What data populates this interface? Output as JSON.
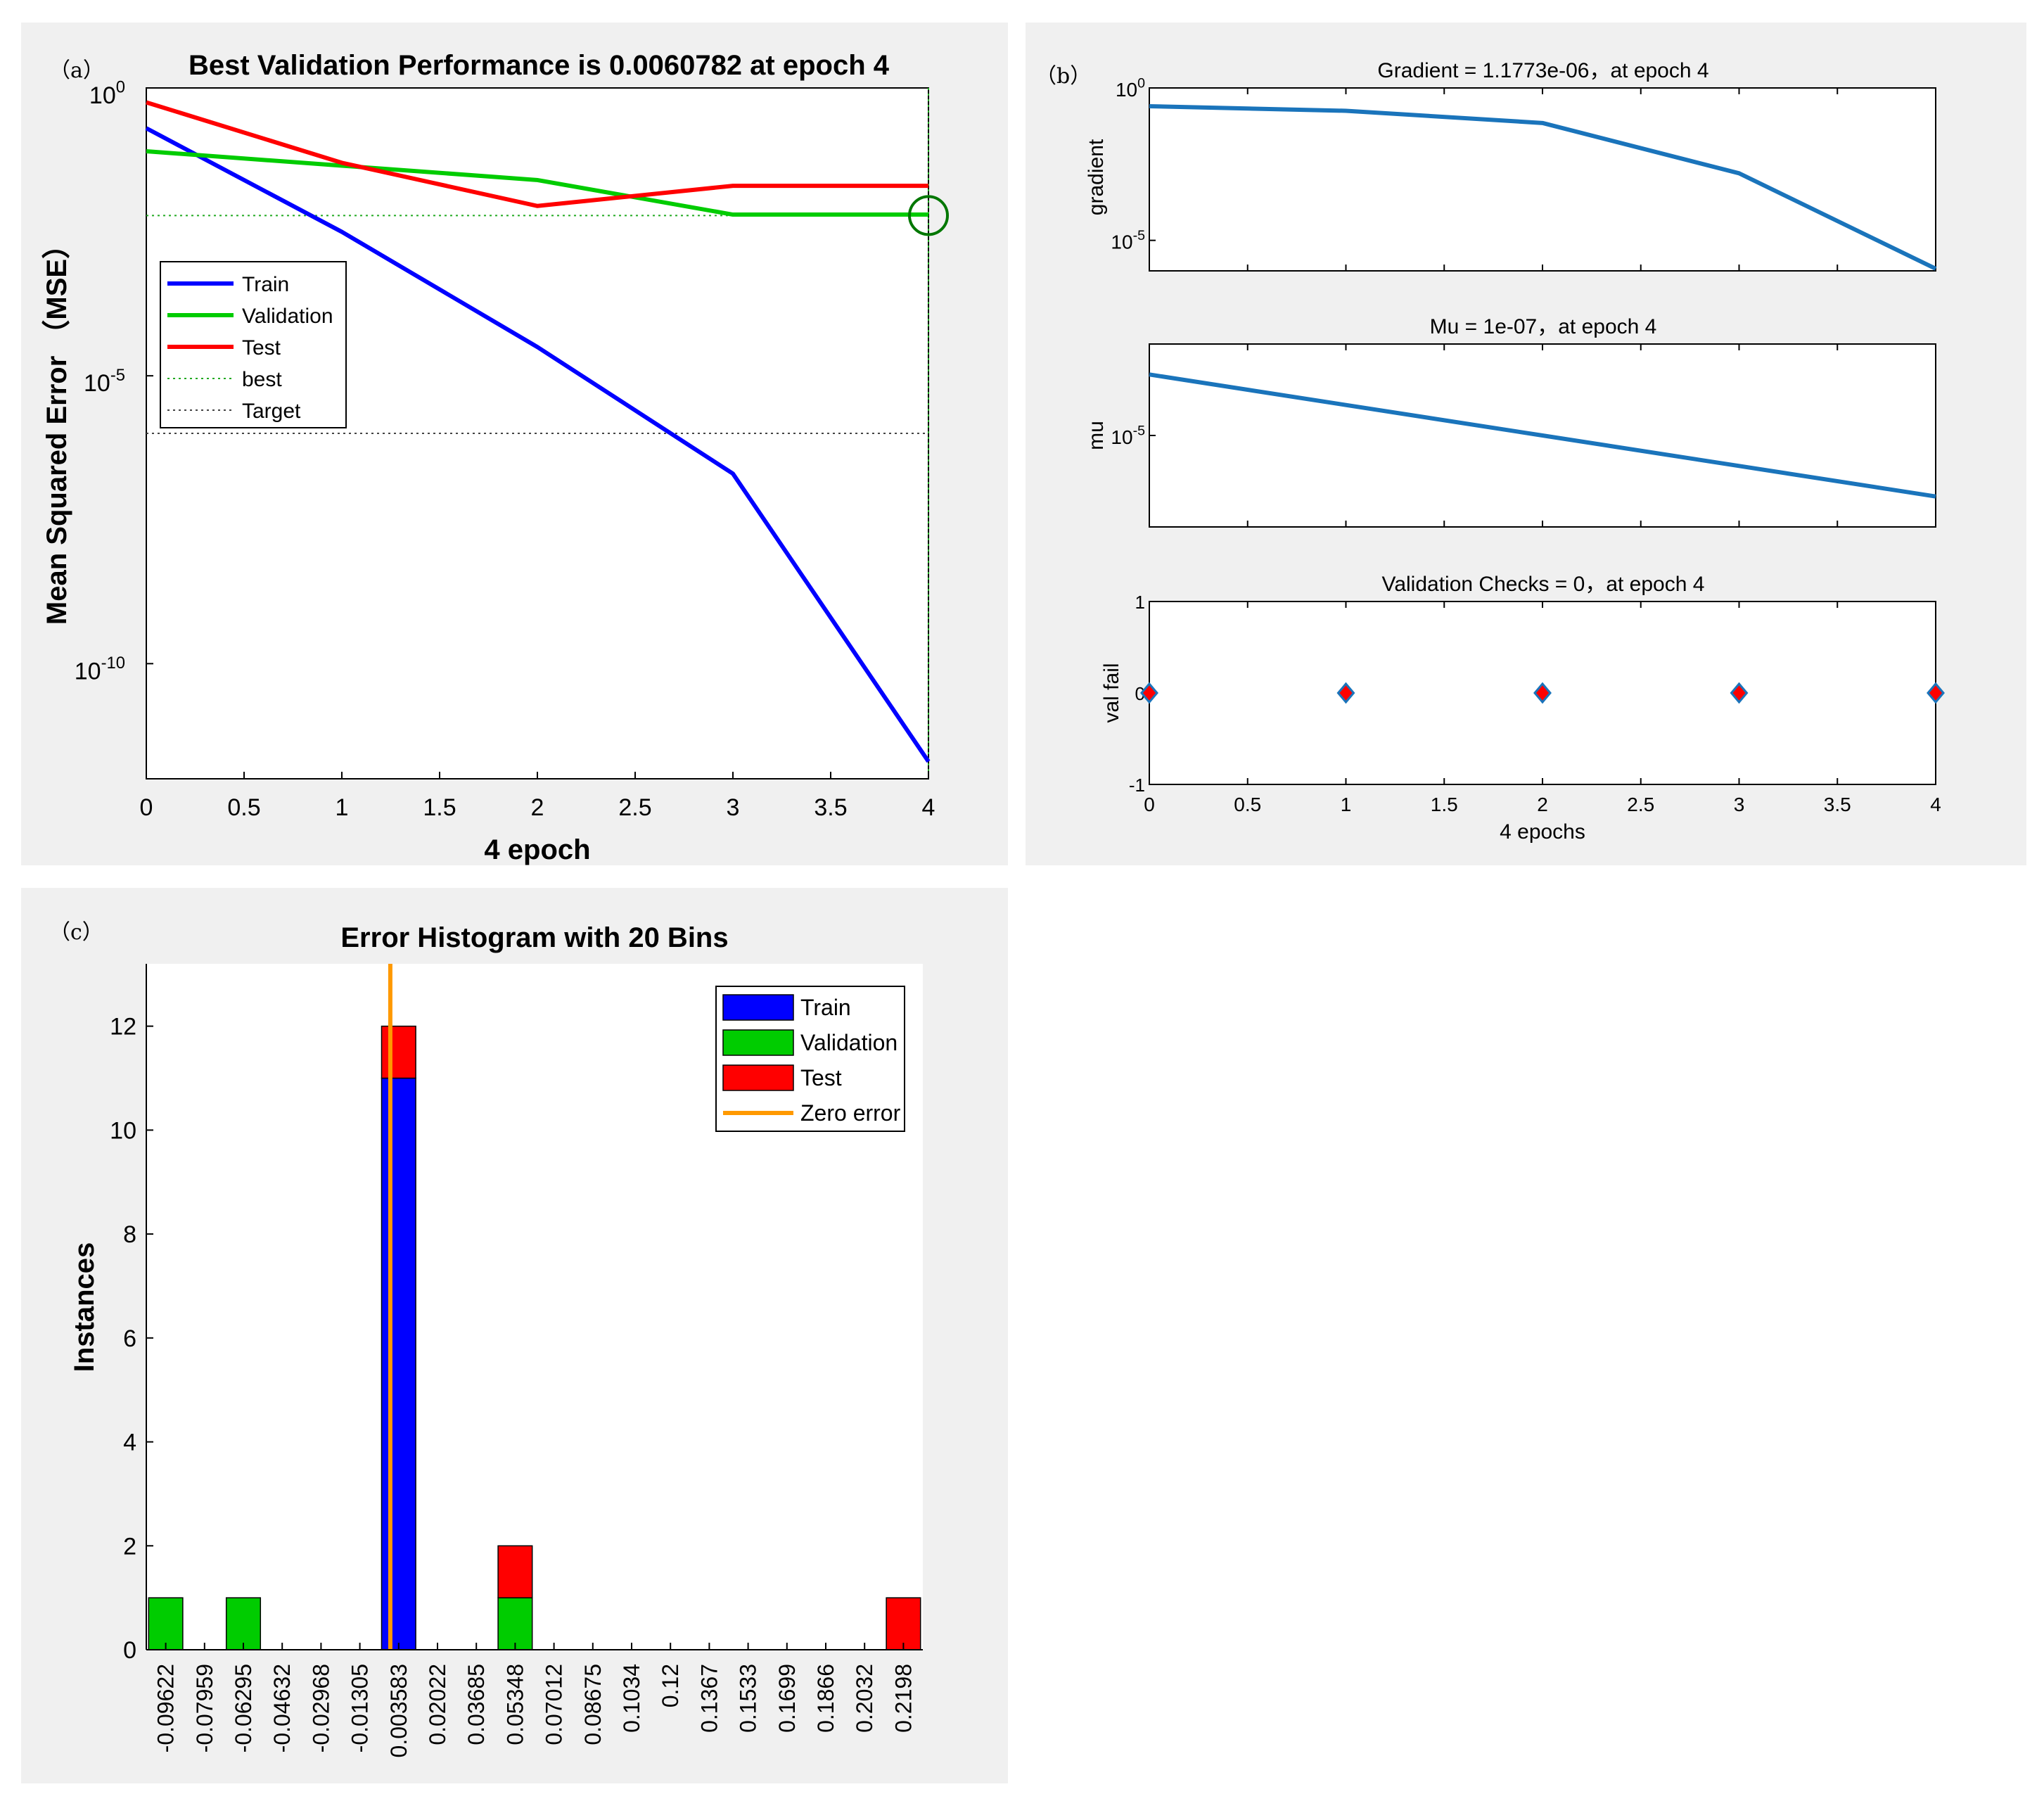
{
  "panels": {
    "a": {
      "tag": "（a）",
      "title": "Best Validation Performance is 0.0060782 at epoch 4"
    },
    "b": {
      "tag": "（b）"
    },
    "c": {
      "tag": "（c）",
      "title": "Error Histogram with 20 Bins"
    }
  },
  "chart_data": [
    {
      "id": "performance",
      "type": "line",
      "title": "Best Validation Performance is 0.0060782 at epoch 4",
      "xlabel": "4 epoch",
      "ylabel": "Mean Squared Error （MSE）",
      "yscale": "log",
      "xlim": [
        0,
        4
      ],
      "ylim_log10": [
        -12,
        0
      ],
      "xticks": [
        "0",
        "0.5",
        "1",
        "1.5",
        "2",
        "2.5",
        "3",
        "3.5",
        "4"
      ],
      "yticks": [
        {
          "label": "10",
          "exp": "0",
          "value_log10": 0
        },
        {
          "label": "10",
          "exp": "-5",
          "value_log10": -5
        },
        {
          "label": "10",
          "exp": "-10",
          "value_log10": -10
        }
      ],
      "x": [
        0,
        1,
        2,
        3,
        4
      ],
      "series": [
        {
          "name": "Train",
          "color": "#0000ff",
          "log10": [
            -0.7,
            -2.5,
            -4.5,
            -6.7,
            -11.7
          ]
        },
        {
          "name": "Validation",
          "color": "#00cc00",
          "log10": [
            -1.1,
            -1.35,
            -1.6,
            -2.2,
            -2.2
          ]
        },
        {
          "name": "Test",
          "color": "#ff0000",
          "log10": [
            -0.25,
            -1.3,
            -2.05,
            -1.7,
            -1.7
          ]
        }
      ],
      "best": {
        "x": 4,
        "value": 0.0060782,
        "color": "#00aa00"
      },
      "target_log10": -6.0,
      "legend": {
        "position": "middle-left",
        "entries": [
          "Train",
          "Validation",
          "Test",
          "best",
          "Target"
        ]
      }
    },
    {
      "id": "gradient",
      "type": "line",
      "title": "Gradient = 1.1773e-06，at epoch 4",
      "ylabel": "gradient",
      "yscale": "log",
      "xlim": [
        0,
        4
      ],
      "ylim_log10": [
        -6,
        0
      ],
      "yticks": [
        {
          "label": "10",
          "exp": "0",
          "value_log10": 0
        },
        {
          "label": "10",
          "exp": "-5",
          "value_log10": -5
        }
      ],
      "x": [
        0,
        1,
        2,
        3,
        4
      ],
      "series": [
        {
          "name": "",
          "color": "#1a74bb",
          "log10": [
            -0.6,
            -0.75,
            -1.15,
            -2.8,
            -5.93
          ]
        }
      ]
    },
    {
      "id": "mu",
      "type": "line",
      "title": "Mu = 1e-07，at epoch 4",
      "ylabel": "mu",
      "yscale": "log",
      "xlim": [
        0,
        4
      ],
      "ylim_log10": [
        -8,
        -2
      ],
      "yticks": [
        {
          "label": "10",
          "exp": "-5",
          "value_log10": -5
        }
      ],
      "x": [
        0,
        1,
        2,
        3,
        4
      ],
      "series": [
        {
          "name": "",
          "color": "#1a74bb",
          "log10": [
            -3,
            -4,
            -5,
            -6,
            -7
          ]
        }
      ]
    },
    {
      "id": "valfail",
      "type": "scatter",
      "title": "Validation Checks = 0，at epoch 4",
      "xlabel": "4 epochs",
      "ylabel": "val fail",
      "xlim": [
        0,
        4
      ],
      "ylim": [
        -1,
        1
      ],
      "xticks": [
        "0",
        "0.5",
        "1",
        "1.5",
        "2",
        "2.5",
        "3",
        "3.5",
        "4"
      ],
      "yticks": [
        "-1",
        "0",
        "1"
      ],
      "x": [
        0,
        1,
        2,
        3,
        4
      ],
      "y": [
        0,
        0,
        0,
        0,
        0
      ],
      "marker_color": "#ff0000",
      "marker_edge": "#1a74bb"
    },
    {
      "id": "histogram",
      "type": "bar",
      "title": "Error Histogram with 20 Bins",
      "ylabel": "Instances",
      "ylim": [
        0,
        13.2
      ],
      "yticks": [
        "0",
        "2",
        "4",
        "6",
        "8",
        "10",
        "12"
      ],
      "categories": [
        "-0.09622",
        "-0.07959",
        "-0.06295",
        "-0.04632",
        "-0.02968",
        "-0.01305",
        "0.003583",
        "0.02022",
        "0.03685",
        "0.05348",
        "0.07012",
        "0.08675",
        "0.1034",
        "0.12",
        "0.1367",
        "0.1533",
        "0.1699",
        "0.1866",
        "0.2032",
        "0.2198"
      ],
      "series": [
        {
          "name": "Train",
          "color": "#0000ff",
          "values": [
            0,
            0,
            0,
            0,
            0,
            0,
            11,
            0,
            0,
            0,
            0,
            0,
            0,
            0,
            0,
            0,
            0,
            0,
            0,
            0
          ]
        },
        {
          "name": "Validation",
          "color": "#00cc00",
          "values": [
            1,
            0,
            1,
            0,
            0,
            0,
            0,
            0,
            0,
            1,
            0,
            0,
            0,
            0,
            0,
            0,
            0,
            0,
            0,
            0
          ]
        },
        {
          "name": "Test",
          "color": "#ff0000",
          "values": [
            0,
            0,
            0,
            0,
            0,
            0,
            1,
            0,
            0,
            1,
            0,
            0,
            0,
            0,
            0,
            0,
            0,
            0,
            0,
            1
          ]
        }
      ],
      "zero_error": {
        "name": "Zero error",
        "color": "#ff9900",
        "value": 0
      },
      "legend": {
        "position": "top-right",
        "entries": [
          "Train",
          "Validation",
          "Test",
          "Zero error"
        ]
      }
    }
  ]
}
